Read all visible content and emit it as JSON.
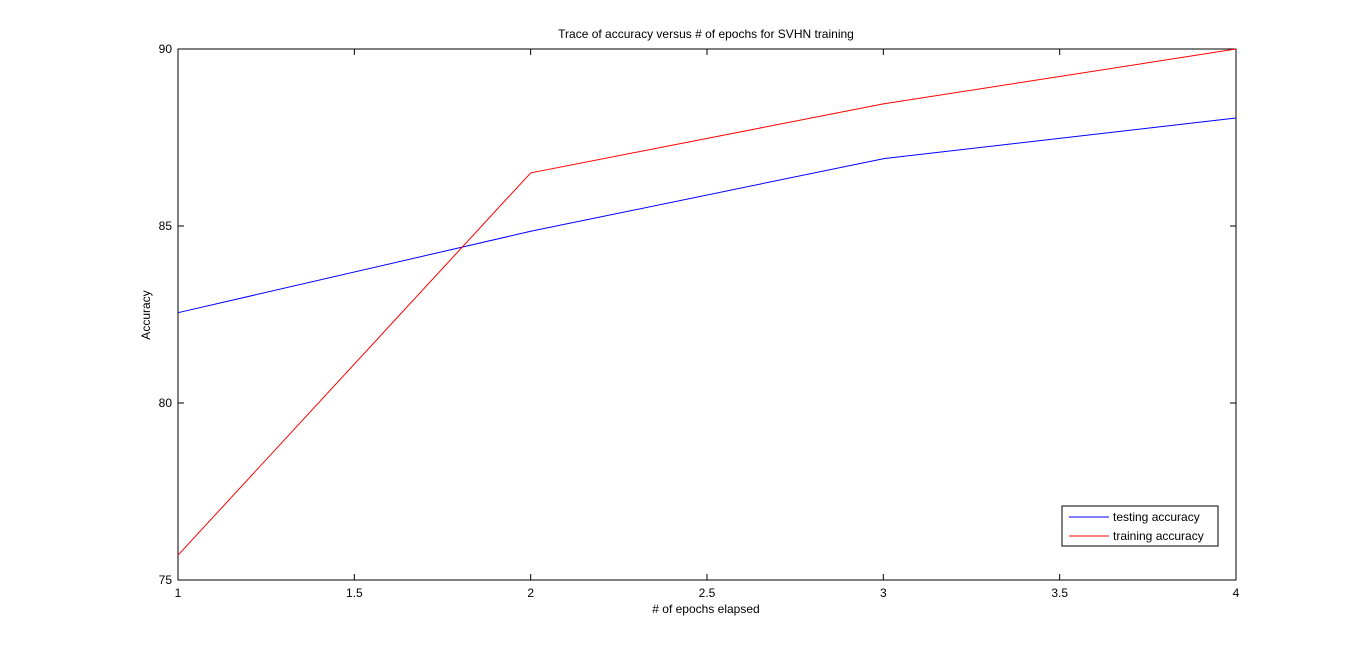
{
  "chart_data": {
    "type": "line",
    "title": "Trace of accuracy versus # of epochs for SVHN training",
    "xlabel": "# of epochs elapsed",
    "ylabel": "Accuracy",
    "xlim": [
      1,
      4
    ],
    "ylim": [
      75,
      90
    ],
    "xticks": [
      1,
      1.5,
      2,
      2.5,
      3,
      3.5,
      4
    ],
    "xtick_labels": [
      "1",
      "1.5",
      "2",
      "2.5",
      "3",
      "3.5",
      "4"
    ],
    "yticks": [
      75,
      80,
      85,
      90
    ],
    "ytick_labels": [
      "75",
      "80",
      "85",
      "90"
    ],
    "grid": false,
    "legend_position": "bottom-right",
    "x": [
      1,
      2,
      3,
      4
    ],
    "series": [
      {
        "name": "testing accuracy",
        "color": "#0000ff",
        "values": [
          82.55,
          84.85,
          86.9,
          88.05
        ]
      },
      {
        "name": "training accuracy",
        "color": "#ff0000",
        "values": [
          75.7,
          86.5,
          88.45,
          90.0
        ]
      }
    ]
  }
}
